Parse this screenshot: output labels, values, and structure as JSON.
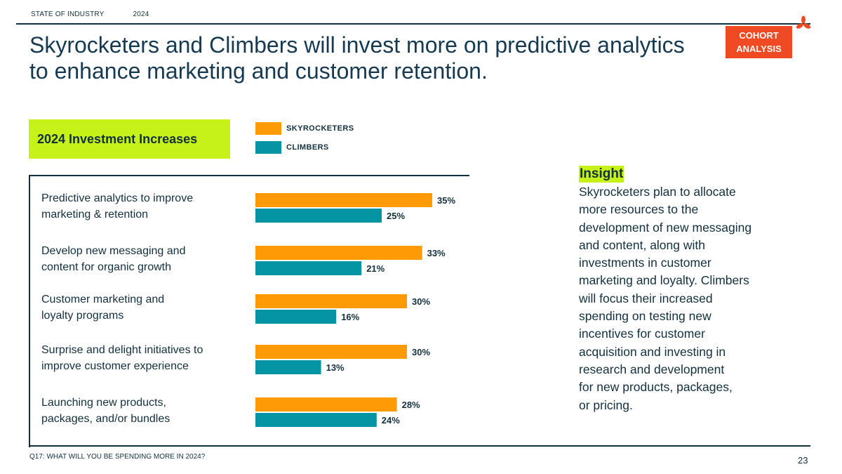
{
  "header": {
    "section": "STATE OF INDUSTRY",
    "year": "2024",
    "title": "Skyrocketers and Climbers will invest more on predictive analytics to enhance marketing and customer retention.",
    "badge_line1": "COHORT",
    "badge_line2": "ANALYSIS"
  },
  "colors": {
    "skyrocketers": "#fd9a06",
    "climbers": "#0494a4",
    "accent": "#c6f21a",
    "badge": "#ef4a23",
    "ink": "#13303f"
  },
  "section_label": "2024 Investment Increases",
  "chart_data": {
    "type": "bar",
    "orientation": "horizontal",
    "title": "2024 Investment Increases",
    "categories": [
      [
        "Predictive analytics to improve",
        "marketing & retention"
      ],
      [
        "Develop new messaging and",
        "content for organic growth"
      ],
      [
        "Customer marketing and",
        "loyalty programs"
      ],
      [
        "Surprise and delight initiatives to",
        "improve customer experience"
      ],
      [
        "Launching new products,",
        "packages, and/or bundles"
      ]
    ],
    "series": [
      {
        "name": "SKYROCKETERS",
        "values": [
          35,
          33,
          30,
          30,
          28
        ],
        "labels": [
          "35%",
          "33%",
          "30%",
          "30%",
          "28%"
        ]
      },
      {
        "name": "CLIMBERS",
        "values": [
          25,
          21,
          16,
          13,
          24
        ],
        "labels": [
          "25%",
          "21%",
          "16%",
          "13%",
          "24%"
        ]
      }
    ],
    "unit": "%",
    "legend_position": "top"
  },
  "insight": {
    "title": "Insight",
    "body": "Skyrocketers plan to allocate\nmore resources to the\ndevelopment of new messaging\nand content, along with\ninvestments in customer\nmarketing and loyalty. Climbers\nwill focus their increased\nspending on testing new\nincentives for customer\nacquisition and investing in\nresearch and development\nfor new products, packages,\nor pricing."
  },
  "footer": {
    "question": "Q17:  WHAT WILL YOU BE SPENDING MORE IN 2024?",
    "page_number": "23"
  }
}
